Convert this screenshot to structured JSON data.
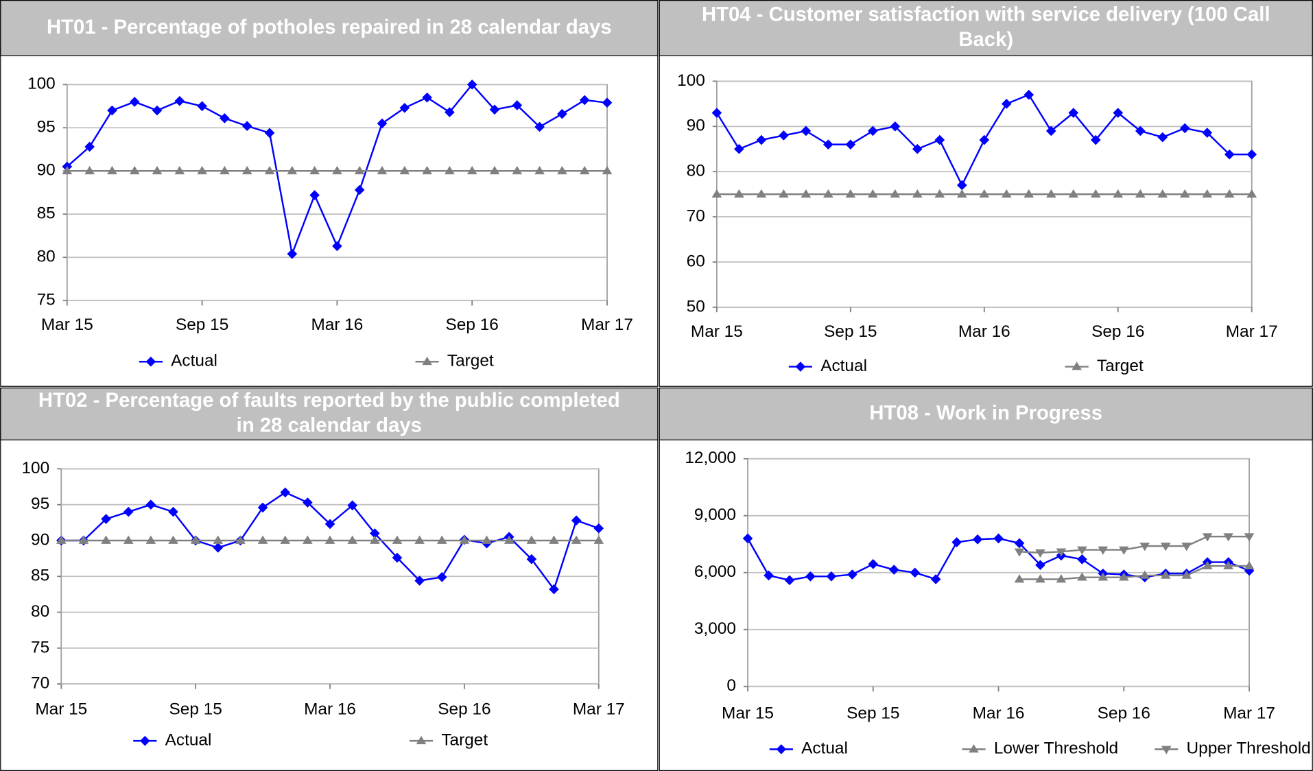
{
  "chart_data": [
    {
      "type": "line",
      "title": "HT01 - Percentage of potholes repaired in 28 calendar days",
      "categories": [
        "Mar 15",
        null,
        null,
        null,
        null,
        null,
        "Sep 15",
        null,
        null,
        null,
        null,
        null,
        "Mar 16",
        null,
        null,
        null,
        null,
        null,
        "Sep 16",
        null,
        null,
        null,
        null,
        null,
        "Mar 17"
      ],
      "series": [
        {
          "name": "Actual",
          "color": "#0000ff",
          "marker": "diamond",
          "values": [
            90.5,
            92.8,
            97,
            98,
            97,
            98.1,
            97.5,
            96.1,
            95.2,
            94.4,
            80.4,
            87.2,
            81.3,
            87.8,
            95.5,
            97.3,
            98.5,
            96.8,
            100,
            97.1,
            97.6,
            95.1,
            96.6,
            98.2,
            97.9
          ]
        },
        {
          "name": "Target",
          "color": "#808080",
          "marker": "triangle",
          "values": [
            90,
            90,
            90,
            90,
            90,
            90,
            90,
            90,
            90,
            90,
            90,
            90,
            90,
            90,
            90,
            90,
            90,
            90,
            90,
            90,
            90,
            90,
            90,
            90,
            90
          ]
        }
      ],
      "ylim": [
        75,
        100
      ],
      "yticks": [
        75,
        80,
        85,
        90,
        95,
        100
      ],
      "grid": true
    },
    {
      "type": "line",
      "title": "HT04 - Customer satisfaction with service delivery (100 Call Back)",
      "categories": [
        "Mar 15",
        null,
        null,
        null,
        null,
        null,
        "Sep 15",
        null,
        null,
        null,
        null,
        null,
        "Mar 16",
        null,
        null,
        null,
        null,
        null,
        "Sep 16",
        null,
        null,
        null,
        null,
        null,
        "Mar 17"
      ],
      "series": [
        {
          "name": "Actual",
          "color": "#0000ff",
          "marker": "diamond",
          "values": [
            93,
            85,
            87,
            88,
            89,
            86,
            86,
            89,
            90,
            85,
            87,
            77,
            87,
            95,
            97,
            89,
            93,
            87,
            93,
            89,
            87.6,
            89.6,
            88.6,
            83.8,
            83.8
          ]
        },
        {
          "name": "Target",
          "color": "#808080",
          "marker": "triangle",
          "values": [
            75,
            75,
            75,
            75,
            75,
            75,
            75,
            75,
            75,
            75,
            75,
            75,
            75,
            75,
            75,
            75,
            75,
            75,
            75,
            75,
            75,
            75,
            75,
            75,
            75
          ]
        }
      ],
      "ylim": [
        50,
        100
      ],
      "yticks": [
        50,
        60,
        70,
        80,
        90,
        100
      ],
      "grid": true
    },
    {
      "type": "line",
      "title": "HT02 - Percentage of faults reported by the public completed in 28 calendar days",
      "categories": [
        "Mar 15",
        null,
        null,
        null,
        null,
        null,
        "Sep 15",
        null,
        null,
        null,
        null,
        null,
        "Mar 16",
        null,
        null,
        null,
        null,
        null,
        "Sep 16",
        null,
        null,
        null,
        null,
        null,
        "Mar 17"
      ],
      "series": [
        {
          "name": "Actual",
          "color": "#0000ff",
          "marker": "diamond",
          "values": [
            90,
            90,
            93,
            94,
            95,
            94,
            90,
            89,
            90,
            94.6,
            96.7,
            95.3,
            92.3,
            94.9,
            91,
            87.6,
            84.4,
            84.9,
            90.1,
            89.6,
            90.5,
            87.4,
            83.2,
            92.8,
            91.7
          ]
        },
        {
          "name": "Target",
          "color": "#808080",
          "marker": "triangle",
          "values": [
            90,
            90,
            90,
            90,
            90,
            90,
            90,
            90,
            90,
            90,
            90,
            90,
            90,
            90,
            90,
            90,
            90,
            90,
            90,
            90,
            90,
            90,
            90,
            90,
            90
          ]
        }
      ],
      "ylim": [
        70,
        100
      ],
      "yticks": [
        70,
        75,
        80,
        85,
        90,
        95,
        100
      ],
      "grid": true
    },
    {
      "type": "line",
      "title": "HT08 - Work in Progress",
      "categories": [
        "Mar 15",
        null,
        null,
        null,
        null,
        null,
        "Sep 15",
        null,
        null,
        null,
        null,
        null,
        "Mar 16",
        null,
        null,
        null,
        null,
        null,
        "Sep 16",
        null,
        null,
        null,
        null,
        null,
        "Mar 17"
      ],
      "series": [
        {
          "name": "Actual",
          "color": "#0000ff",
          "marker": "diamond",
          "values": [
            7800,
            5850,
            5600,
            5800,
            5800,
            5900,
            6450,
            6150,
            6000,
            5650,
            7600,
            7750,
            7800,
            7550,
            6400,
            6900,
            6700,
            5950,
            5900,
            5750,
            5950,
            5950,
            6550,
            6550,
            6100
          ]
        },
        {
          "name": "Lower Threshold",
          "color": "#808080",
          "marker": "triangle",
          "values": [
            null,
            null,
            null,
            null,
            null,
            null,
            null,
            null,
            null,
            null,
            null,
            null,
            null,
            5650,
            5650,
            5650,
            5750,
            5750,
            5750,
            5850,
            5850,
            5850,
            6350,
            6350,
            6350
          ]
        },
        {
          "name": "Upper Threshold",
          "color": "#808080",
          "marker": "triangle-down",
          "values": [
            null,
            null,
            null,
            null,
            null,
            null,
            null,
            null,
            null,
            null,
            null,
            null,
            null,
            7100,
            7050,
            7100,
            7200,
            7200,
            7200,
            7400,
            7400,
            7400,
            7900,
            7900,
            7900
          ]
        }
      ],
      "ylim": [
        0,
        12000
      ],
      "yticks": [
        {
          "value": 0,
          "label": "0"
        },
        {
          "value": 3000,
          "label": "3,000"
        },
        {
          "value": 6000,
          "label": "6,000"
        },
        {
          "value": 9000,
          "label": "9,000"
        },
        {
          "value": 12000,
          "label": "12,000"
        }
      ],
      "grid": true
    }
  ]
}
